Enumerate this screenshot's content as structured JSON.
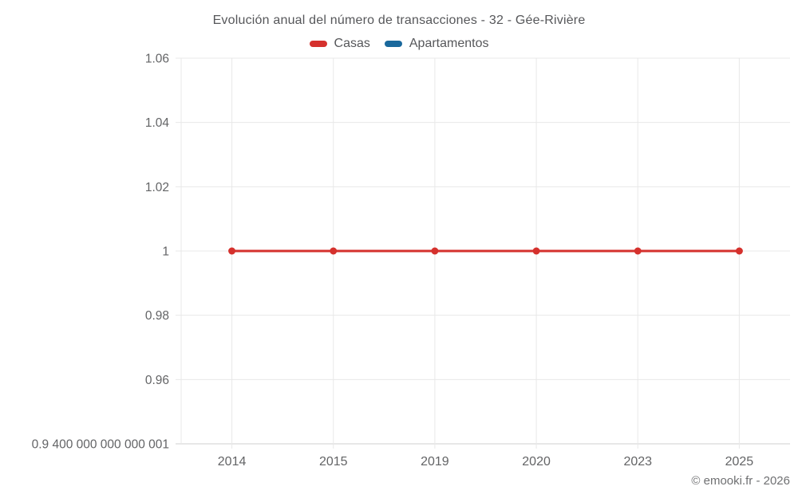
{
  "copyright": "© emooki.fr - 2026",
  "chart_data": {
    "type": "line",
    "title": "Evolución anual del número de transacciones - 32 - Gée-Rivière",
    "categories": [
      "2014",
      "2015",
      "2019",
      "2020",
      "2023",
      "2025"
    ],
    "series": [
      {
        "name": "Casas",
        "color": "#d5312d",
        "values": [
          1,
          1,
          1,
          1,
          1,
          1
        ]
      },
      {
        "name": "Apartamentos",
        "color": "#1a689c",
        "values": [
          null,
          null,
          null,
          null,
          null,
          null
        ]
      }
    ],
    "y_ticks": [
      {
        "label": "1.06",
        "value": 1.06
      },
      {
        "label": "1.04",
        "value": 1.04
      },
      {
        "label": "1.02",
        "value": 1.02
      },
      {
        "label": "1",
        "value": 1
      },
      {
        "label": "0.98",
        "value": 0.98
      },
      {
        "label": "0.96",
        "value": 0.96
      },
      {
        "label": "0.9 400 000 000 000 001",
        "value": 0.9400000000000001
      }
    ],
    "ylim": [
      0.9400000000000001,
      1.06
    ],
    "xlabel": "",
    "ylabel": "",
    "grid": true,
    "legend_position": "top",
    "colors": {
      "grid": "#e8e8e8",
      "axis": "#cfcfcf",
      "tick_label": "#636466",
      "title": "#56575a"
    }
  }
}
